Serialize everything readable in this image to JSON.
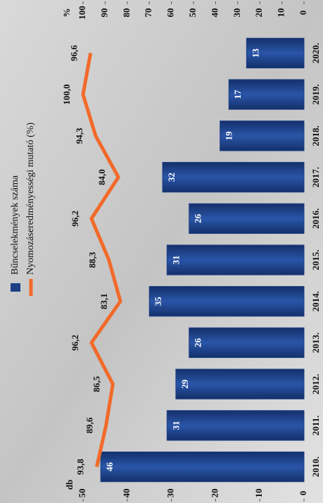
{
  "chart_data": {
    "type": "bar",
    "categories": [
      "2010.",
      "2011.",
      "2012.",
      "2013.",
      "2014.",
      "2015.",
      "2016.",
      "2017.",
      "2018.",
      "2019.",
      "2020."
    ],
    "y_label": "db",
    "y2_label": "%",
    "ylim": [
      0,
      50
    ],
    "yticks": [
      0,
      10,
      20,
      30,
      40,
      50
    ],
    "y2lim": [
      0,
      100
    ],
    "y2ticks": [
      0,
      10,
      20,
      30,
      40,
      50,
      60,
      70,
      80,
      90,
      100
    ],
    "legend": "top",
    "series": [
      {
        "name": "Bűncselekmények száma",
        "type": "bar",
        "color": "#1c3f86",
        "values": [
          46,
          31,
          29,
          26,
          35,
          31,
          26,
          32,
          19,
          17,
          13
        ]
      },
      {
        "name": "Nyomozáseredményességi mutató (%)",
        "type": "line",
        "axis": "y2",
        "color": "#f26a2a",
        "values": [
          93.8,
          89.6,
          86.5,
          96.2,
          83.1,
          88.3,
          96.2,
          84.0,
          94.3,
          100.0,
          96.6
        ],
        "value_labels": [
          "93,8",
          "89,6",
          "86,5",
          "96,2",
          "83,1",
          "88,3",
          "96,2",
          "84,0",
          "94,3",
          "100,0",
          "96,6"
        ]
      }
    ]
  }
}
